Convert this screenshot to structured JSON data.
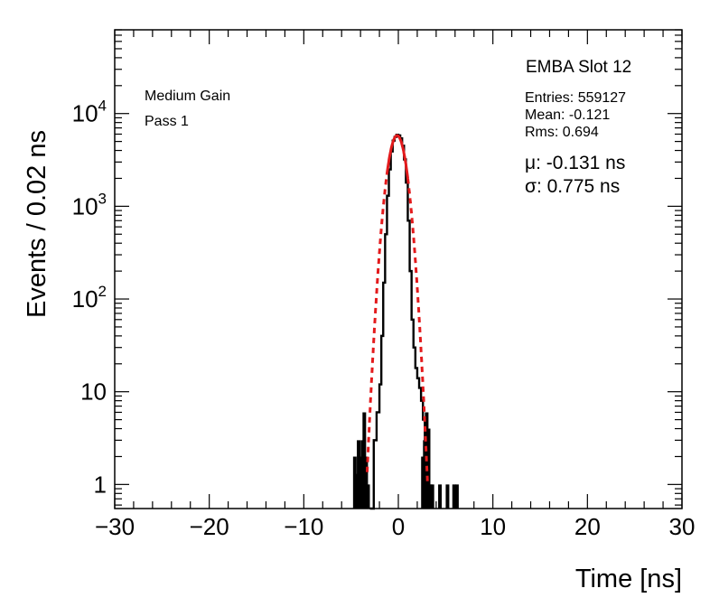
{
  "chart_data": {
    "type": "line",
    "title": "EMBA Slot 12",
    "xlabel": "Time [ns]",
    "ylabel": "Events / 0.02 ns",
    "xlim": [
      -30,
      30
    ],
    "ylim": [
      0.55,
      80000
    ],
    "yscale": "log",
    "grid": false,
    "xticks": [
      -30,
      -20,
      -10,
      0,
      10,
      20,
      30
    ],
    "xtick_labels": [
      "−30",
      "−20",
      "−10",
      "0",
      "10",
      "20",
      "30"
    ],
    "yticks": [
      {
        "value": 1,
        "base": "1",
        "exp": ""
      },
      {
        "value": 10,
        "base": "10",
        "exp": ""
      },
      {
        "value": 100,
        "base": "10",
        "exp": "2"
      },
      {
        "value": 1000,
        "base": "10",
        "exp": "3"
      },
      {
        "value": 10000,
        "base": "10",
        "exp": "4"
      }
    ],
    "labels": {
      "gain": "Medium Gain",
      "pass": "Pass 1"
    },
    "stats": {
      "entries": "Entries: 559127",
      "mean": "Mean: -0.121",
      "rms": "Rms: 0.694"
    },
    "fit": {
      "mu_label": "μ: -0.131 ns",
      "sigma_label": "σ: 0.775 ns",
      "mu": -0.131,
      "sigma": 0.775,
      "amplitude": 5800,
      "color": "#e31a1c"
    },
    "histogram": {
      "color": "#000000",
      "core_x": [
        -3.0,
        -2.6,
        -2.3,
        -2.0,
        -1.8,
        -1.6,
        -1.4,
        -1.2,
        -1.0,
        -0.8,
        -0.6,
        -0.4,
        -0.2,
        0.0,
        0.2,
        0.4,
        0.6,
        0.8,
        1.0,
        1.2,
        1.4,
        1.6,
        1.8,
        2.0,
        2.2,
        2.4,
        2.6,
        2.8,
        3.0
      ],
      "core_y": [
        0.55,
        3,
        6,
        12,
        40,
        150,
        500,
        1300,
        2500,
        3900,
        5100,
        5600,
        5900,
        5800,
        5400,
        4500,
        3200,
        1800,
        700,
        200,
        60,
        30,
        18,
        14,
        11,
        8,
        5,
        1.5,
        0.55
      ],
      "spikes": [
        {
          "x": -4.6,
          "y": 2
        },
        {
          "x": -4.4,
          "y": 1.3
        },
        {
          "x": -4.2,
          "y": 3
        },
        {
          "x": -4.0,
          "y": 2
        },
        {
          "x": -3.8,
          "y": 3
        },
        {
          "x": -3.6,
          "y": 6
        },
        {
          "x": -3.4,
          "y": 2
        },
        {
          "x": -3.2,
          "y": 1
        },
        {
          "x": 2.6,
          "y": 2
        },
        {
          "x": 2.8,
          "y": 3
        },
        {
          "x": 3.0,
          "y": 6
        },
        {
          "x": 3.2,
          "y": 4
        },
        {
          "x": 3.4,
          "y": 1
        },
        {
          "x": 3.6,
          "y": 1
        },
        {
          "x": 4.4,
          "y": 1
        },
        {
          "x": 5.2,
          "y": 1
        },
        {
          "x": 5.9,
          "y": 1
        },
        {
          "x": 6.2,
          "y": 1
        }
      ]
    }
  }
}
